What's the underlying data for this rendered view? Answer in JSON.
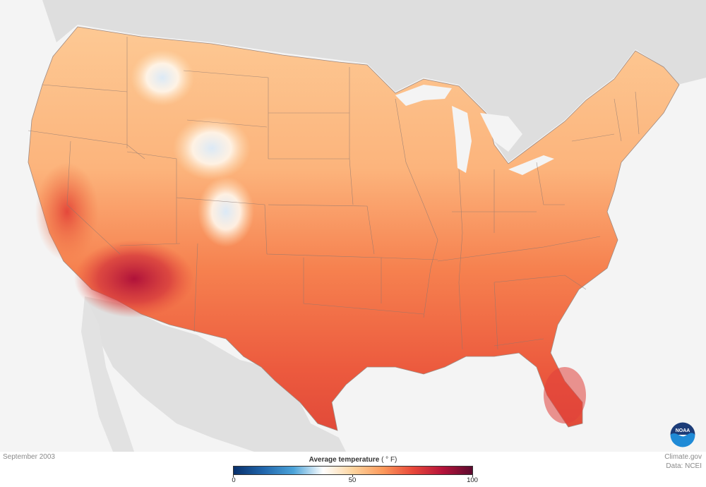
{
  "map": {
    "date": "September 2003",
    "legend": {
      "title": "Average temperature",
      "unit": "( ° F)",
      "ticks": [
        "0",
        "50",
        "100"
      ],
      "colors": [
        "#08306b",
        "#2166ac",
        "#4ba3d9",
        "#ffffff",
        "#fdd49e",
        "#fc9a5c",
        "#e8483a",
        "#b5133a",
        "#5c0a2e"
      ]
    },
    "credits": {
      "site": "Climate.gov",
      "data": "Data: NCEI"
    },
    "logo_text": "NOAA",
    "colors": {
      "background": "#f4f4f4",
      "land_outside": "#d9d9d9",
      "border": "#7a6a66"
    }
  }
}
